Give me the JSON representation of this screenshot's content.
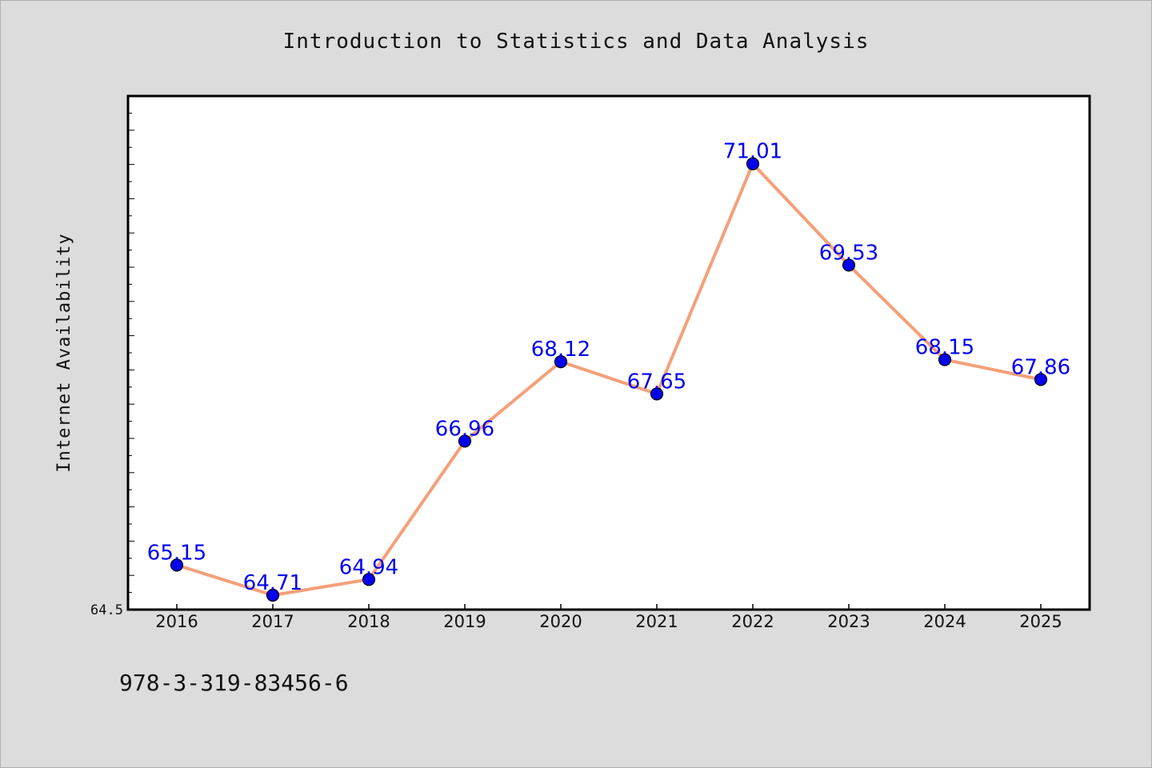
{
  "title": "Introduction to Statistics and Data Analysis",
  "footer": "978-3-319-83456-6",
  "chart_data": {
    "type": "line",
    "title": "Introduction to Statistics and Data Analysis",
    "xlabel": "",
    "ylabel": "Internet Availability",
    "categories": [
      "2016",
      "2017",
      "2018",
      "2019",
      "2020",
      "2021",
      "2022",
      "2023",
      "2024",
      "2025"
    ],
    "values": [
      65.15,
      64.71,
      64.94,
      66.96,
      68.12,
      67.65,
      71.01,
      69.53,
      68.15,
      67.86
    ],
    "data_labels": [
      "65.15",
      "64.71",
      "64.94",
      "66.96",
      "68.12",
      "67.65",
      "71.01",
      "69.53",
      "68.15",
      "67.86"
    ],
    "y_tick_labels": [
      "64.5"
    ],
    "ylim": [
      64.5,
      72.0
    ],
    "grid": false,
    "legend": "none",
    "line_color": "#f4a07a",
    "marker_color": "#0000ee",
    "label_color": "#0000ee"
  }
}
